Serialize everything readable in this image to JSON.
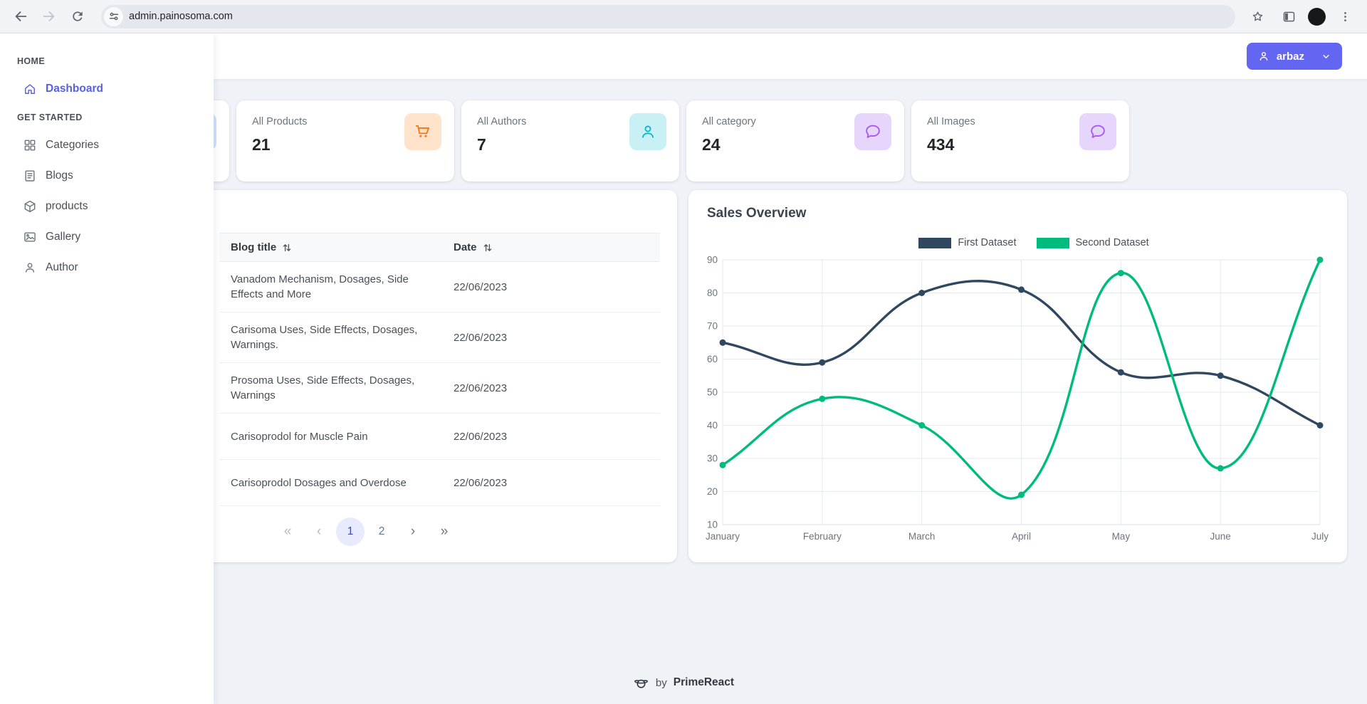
{
  "browser": {
    "url": "admin.painosoma.com"
  },
  "topbar": {
    "user": {
      "label": "arbaz"
    }
  },
  "sidebar": {
    "sections": [
      {
        "label": "HOME",
        "items": [
          {
            "label": "Dashboard",
            "icon": "home",
            "active": true
          }
        ]
      },
      {
        "label": "GET STARTED",
        "items": [
          {
            "label": "Categories",
            "icon": "grid",
            "active": false
          },
          {
            "label": "Blogs",
            "icon": "book",
            "active": false
          },
          {
            "label": "products",
            "icon": "box",
            "active": false
          },
          {
            "label": "Gallery",
            "icon": "images",
            "active": false
          },
          {
            "label": "Author",
            "icon": "user",
            "active": false
          }
        ]
      }
    ]
  },
  "stats": [
    {
      "label": "",
      "value": "",
      "icon": "none",
      "icon_bg": "#cfe1fd",
      "icon_color": "#3b82f6"
    },
    {
      "label": "All Products",
      "value": "21",
      "icon": "cart",
      "icon_bg": "#ffe3ca",
      "icon_color": "#f97316"
    },
    {
      "label": "All Authors",
      "value": "7",
      "icon": "user",
      "icon_bg": "#c9f1f5",
      "icon_color": "#06b6d4"
    },
    {
      "label": "All category",
      "value": "24",
      "icon": "comment",
      "icon_bg": "#e7d6fb",
      "icon_color": "#a855f7"
    },
    {
      "label": "All Images",
      "value": "434",
      "icon": "comment",
      "icon_bg": "#e7d6fb",
      "icon_color": "#a855f7"
    }
  ],
  "blog_table": {
    "columns": [
      "Blog title",
      "Date"
    ],
    "rows": [
      {
        "title": "Vanadom Mechanism, Dosages, Side Effects and More",
        "date": "22/06/2023"
      },
      {
        "title": "Carisoma Uses, Side Effects, Dosages, Warnings.",
        "date": "22/06/2023"
      },
      {
        "title": "Prosoma Uses, Side Effects, Dosages, Warnings",
        "date": "22/06/2023"
      },
      {
        "title": "Carisoprodol for Muscle Pain",
        "date": "22/06/2023"
      },
      {
        "title": "Carisoprodol Dosages and Overdose",
        "date": "22/06/2023"
      }
    ],
    "paginator": {
      "first_label": "«",
      "prev_label": "‹",
      "pages": [
        "1",
        "2"
      ],
      "active_page": "1",
      "next_label": "›",
      "last_label": "»"
    }
  },
  "chart_data": {
    "type": "line",
    "title": "Sales Overview",
    "x": [
      "January",
      "February",
      "March",
      "April",
      "May",
      "June",
      "July"
    ],
    "series": [
      {
        "name": "First Dataset",
        "color": "#2f4860",
        "values": [
          65,
          59,
          80,
          81,
          56,
          55,
          40
        ]
      },
      {
        "name": "Second Dataset",
        "color": "#00bb7e",
        "values": [
          28,
          48,
          40,
          19,
          86,
          27,
          90
        ]
      }
    ],
    "ylim": [
      10,
      90
    ],
    "ytick_step": 10,
    "grid": true,
    "legend_position": "top-center",
    "tension": 0.4
  },
  "footer": {
    "by": "by",
    "brand": "PrimeReact"
  },
  "colors": {
    "primary": "#6366F1",
    "content_bg": "#eff3f8"
  }
}
